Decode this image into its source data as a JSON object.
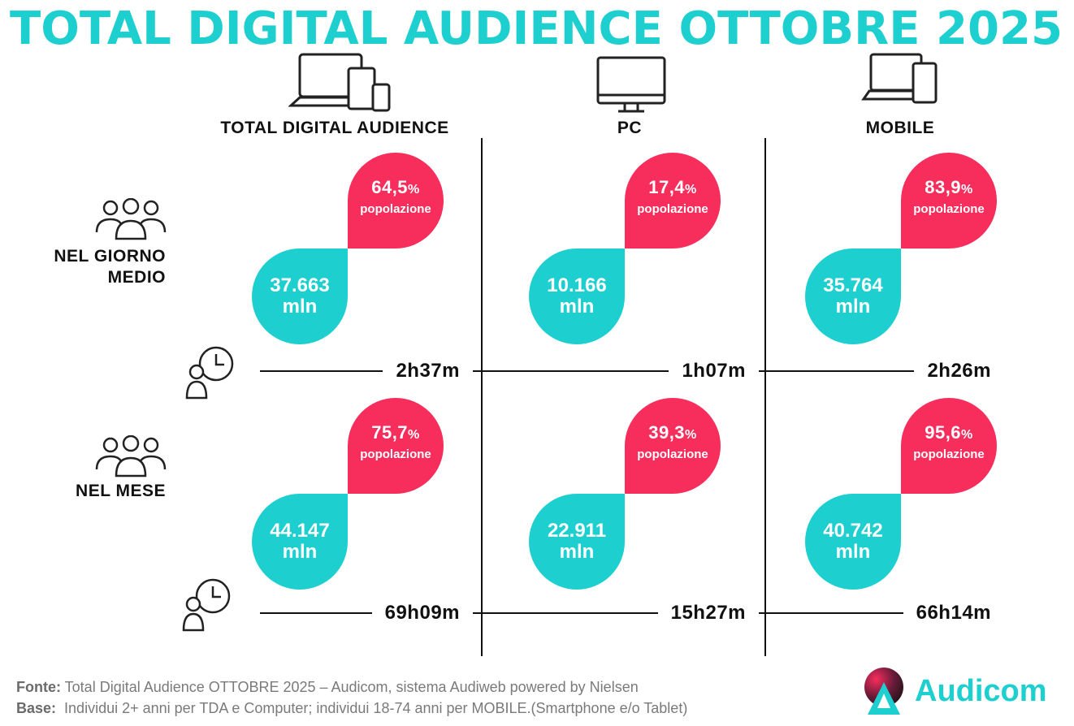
{
  "title": "TOTAL DIGITAL AUDIENCE OTTOBRE 2025",
  "columns": [
    "TOTAL DIGITAL AUDIENCE",
    "PC",
    "MOBILE"
  ],
  "rows": [
    {
      "label": "NEL GIORNO MEDIO",
      "cells": [
        {
          "reach": "64,5",
          "reach_unit": "%",
          "reach_label": "popolazione",
          "users": "37.663",
          "users_unit": "mln",
          "time": "2h37m"
        },
        {
          "reach": "17,4",
          "reach_unit": "%",
          "reach_label": "popolazione",
          "users": "10.166",
          "users_unit": "mln",
          "time": "1h07m"
        },
        {
          "reach": "83,9",
          "reach_unit": "%",
          "reach_label": "popolazione",
          "users": "35.764",
          "users_unit": "mln",
          "time": "2h26m"
        }
      ]
    },
    {
      "label": "NEL MESE",
      "cells": [
        {
          "reach": "75,7",
          "reach_unit": "%",
          "reach_label": "popolazione",
          "users": "44.147",
          "users_unit": "mln",
          "time": "69h09m"
        },
        {
          "reach": "39,3",
          "reach_unit": "%",
          "reach_label": "popolazione",
          "users": "22.911",
          "users_unit": "mln",
          "time": "15h27m"
        },
        {
          "reach": "95,6",
          "reach_unit": "%",
          "reach_label": "popolazione",
          "users": "40.742",
          "users_unit": "mln",
          "time": "66h14m"
        }
      ]
    }
  ],
  "footer": {
    "source_label": "Fonte:",
    "source": "Total Digital Audience OTTOBRE 2025 – Audicom, sistema Audiweb powered by Nielsen",
    "base_label": "Base:",
    "base": "Individui 2+ anni per TDA e Computer; individui 18-74 anni per MOBILE.(Smartphone e/o Tablet)"
  },
  "logo": "Audicom"
}
